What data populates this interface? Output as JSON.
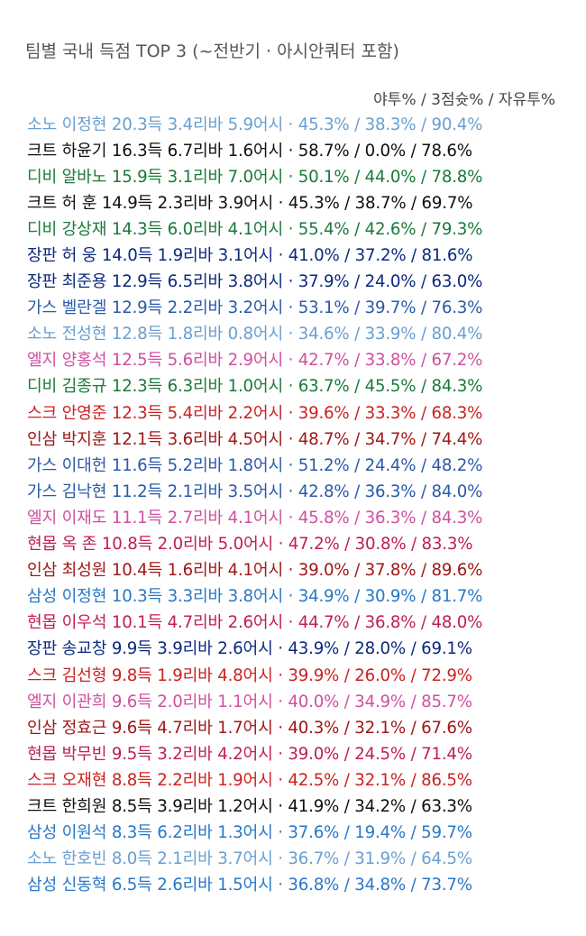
{
  "title": "팀별 국내 득점 TOP 3 (~전반기 · 아시안쿼터 포함)",
  "header": "야투% / 3점슛% / 자유투%",
  "colors": {
    "소노": "#6a9fd0",
    "크트": "#111111",
    "디비": "#1b7a3a",
    "장판": "#0d2a7e",
    "가스": "#2a5aaa",
    "엘지": "#d050a0",
    "스크": "#cc2222",
    "인삼": "#a01818",
    "현몹": "#c02050",
    "삼성": "#2878c8"
  },
  "rows": [
    {
      "team": "소노",
      "text": "소노 이정현 20.3득 3.4리바 5.9어시 · 45.3% / 38.3% / 90.4%"
    },
    {
      "team": "크트",
      "text": "크트 하윤기 16.3득 6.7리바 1.6어시 · 58.7% / 0.0% / 78.6%"
    },
    {
      "team": "디비",
      "text": "디비 알바노 15.9득 3.1리바 7.0어시 · 50.1% / 44.0% / 78.8%"
    },
    {
      "team": "크트",
      "text": "크트 허 훈 14.9득 2.3리바 3.9어시 · 45.3% / 38.7% / 69.7%"
    },
    {
      "team": "디비",
      "text": "디비 강상재 14.3득 6.0리바 4.1어시 · 55.4% / 42.6% / 79.3%"
    },
    {
      "team": "장판",
      "text": "장판 허 웅 14.0득 1.9리바 3.1어시 · 41.0% / 37.2% / 81.6%"
    },
    {
      "team": "장판",
      "text": "장판 최준용 12.9득 6.5리바 3.8어시 · 37.9% / 24.0% / 63.0%"
    },
    {
      "team": "가스",
      "text": "가스 벨란겔 12.9득 2.2리바 3.2어시 · 53.1% / 39.7% / 76.3%"
    },
    {
      "team": "소노",
      "text": "소노 전성현 12.8득 1.8리바 0.8어시 · 34.6% / 33.9% / 80.4%"
    },
    {
      "team": "엘지",
      "text": "엘지 양홍석 12.5득 5.6리바 2.9어시 · 42.7% / 33.8% / 67.2%"
    },
    {
      "team": "디비",
      "text": "디비 김종규 12.3득 6.3리바 1.0어시 · 63.7% / 45.5% / 84.3%"
    },
    {
      "team": "스크",
      "text": "스크 안영준 12.3득 5.4리바 2.2어시 · 39.6% / 33.3% / 68.3%"
    },
    {
      "team": "인삼",
      "text": "인삼 박지훈 12.1득 3.6리바 4.5어시 · 48.7% / 34.7% / 74.4%"
    },
    {
      "team": "가스",
      "text": "가스 이대헌 11.6득 5.2리바 1.8어시 · 51.2% / 24.4% / 48.2%"
    },
    {
      "team": "가스",
      "text": "가스 김낙현 11.2득 2.1리바 3.5어시 · 42.8% / 36.3% / 84.0%"
    },
    {
      "team": "엘지",
      "text": "엘지 이재도 11.1득 2.7리바 4.1어시 · 45.8% / 36.3% / 84.3%"
    },
    {
      "team": "현몹",
      "text": "현몹 옥 존 10.8득 2.0리바 5.0어시 · 47.2% / 30.8% / 83.3%"
    },
    {
      "team": "인삼",
      "text": "인삼 최성원 10.4득 1.6리바 4.1어시 · 39.0% / 37.8% / 89.6%"
    },
    {
      "team": "삼성",
      "text": "삼성 이정현 10.3득 3.3리바 3.8어시 · 34.9% / 30.9% / 81.7%"
    },
    {
      "team": "현몹",
      "text": "현몹 이우석 10.1득 4.7리바 2.6어시 · 44.7% / 36.8% / 48.0%"
    },
    {
      "team": "장판",
      "text": "장판 송교창 9.9득 3.9리바 2.6어시 · 43.9% / 28.0% / 69.1%"
    },
    {
      "team": "스크",
      "text": "스크 김선형 9.8득 1.9리바 4.8어시 · 39.9% / 26.0% / 72.9%"
    },
    {
      "team": "엘지",
      "text": "엘지 이관희 9.6득 2.0리바 1.1어시 · 40.0% / 34.9% / 85.7%"
    },
    {
      "team": "인삼",
      "text": "인삼 정효근 9.6득 4.7리바 1.7어시 · 40.3% / 32.1% / 67.6%"
    },
    {
      "team": "현몹",
      "text": "현몹 박무빈 9.5득 3.2리바 4.2어시 · 39.0% / 24.5% / 71.4%"
    },
    {
      "team": "스크",
      "text": "스크 오재현 8.8득 2.2리바 1.9어시 · 42.5% / 32.1% / 86.5%"
    },
    {
      "team": "크트",
      "text": "크트 한희원 8.5득 3.9리바 1.2어시 · 41.9% / 34.2% / 63.3%"
    },
    {
      "team": "삼성",
      "text": "삼성 이원석 8.3득 6.2리바 1.3어시 · 37.6% / 19.4% / 59.7%"
    },
    {
      "team": "소노",
      "text": "소노 한호빈 8.0득 2.1리바 3.7어시 · 36.7% / 31.9% / 64.5%"
    },
    {
      "team": "삼성",
      "text": "삼성 신동혁 6.5득 2.6리바 1.5어시 · 36.8% / 34.8% / 73.7%"
    }
  ]
}
